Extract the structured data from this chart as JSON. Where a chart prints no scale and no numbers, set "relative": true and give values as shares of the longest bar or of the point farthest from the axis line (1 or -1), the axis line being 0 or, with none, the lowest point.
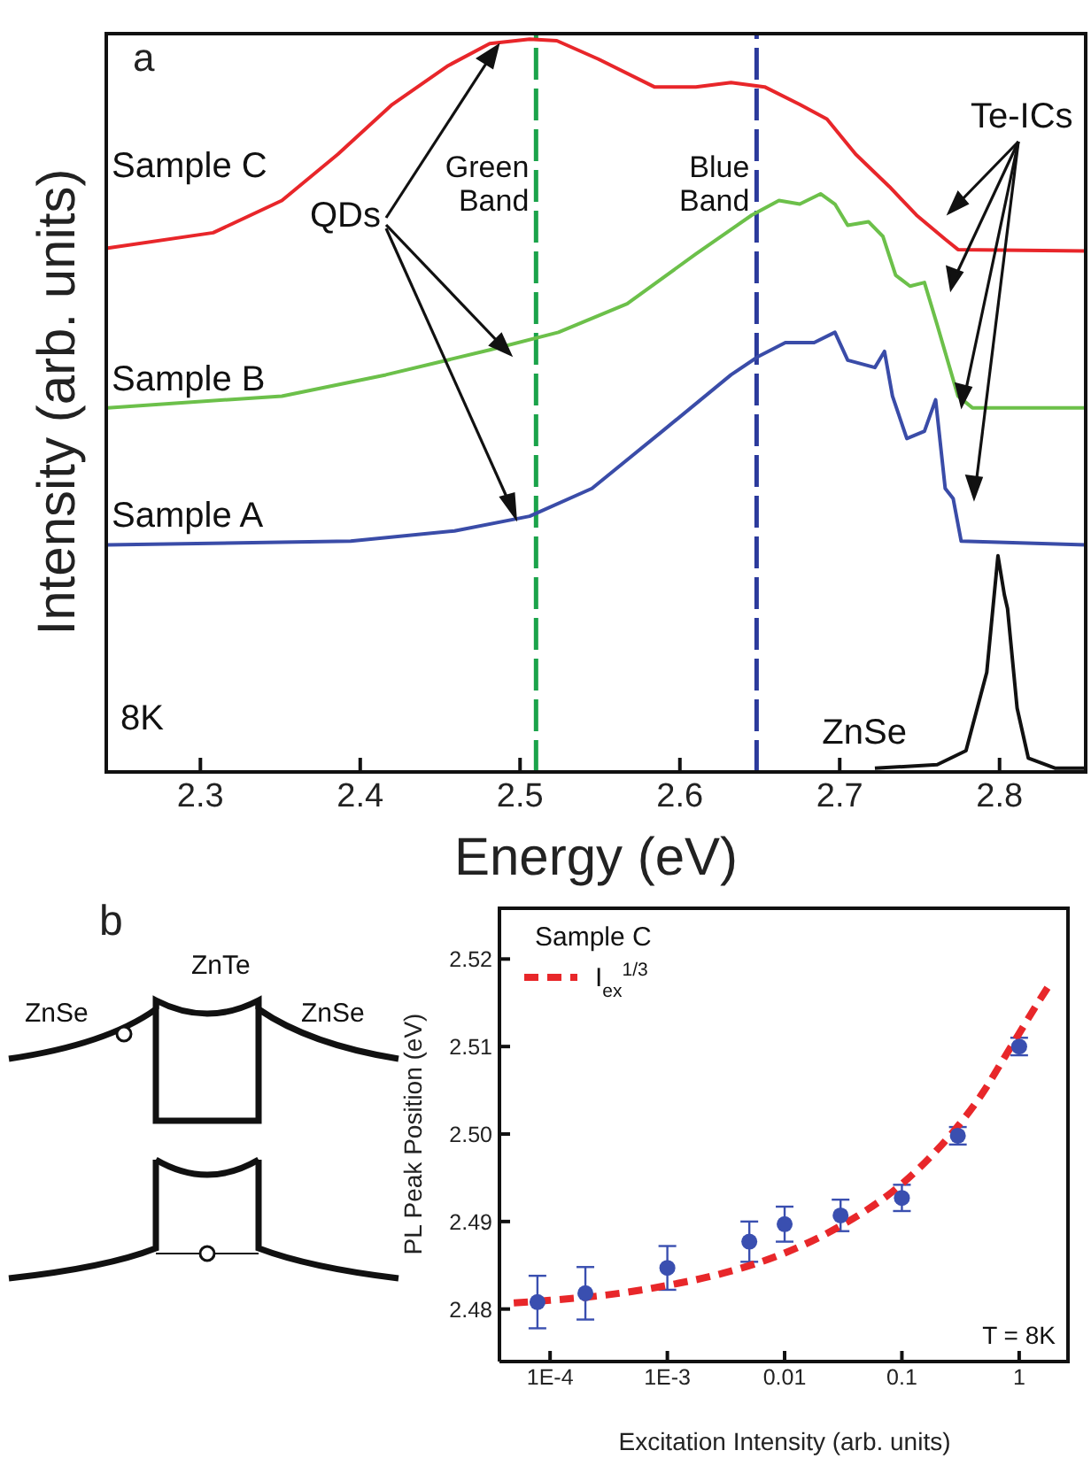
{
  "chart_data": [
    {
      "type": "line",
      "title": "a",
      "xlabel": "Energy (eV)",
      "ylabel": "Intensity (arb. units)",
      "relative": true,
      "xlim": [
        2.24,
        2.855
      ],
      "xticks": [
        2.3,
        2.4,
        2.5,
        2.6,
        2.7,
        2.8
      ],
      "tick_labels": "x",
      "series": [
        {
          "name": "Sample C",
          "color": "#e8262a",
          "x": [
            2.242,
            2.308,
            2.351,
            2.386,
            2.42,
            2.455,
            2.481,
            2.506,
            2.523,
            2.549,
            2.584,
            2.61,
            2.632,
            2.653,
            2.675,
            2.692,
            2.71,
            2.731,
            2.748,
            2.766,
            2.774,
            2.854
          ],
          "values": [
            0.715,
            0.736,
            0.78,
            0.843,
            0.911,
            0.964,
            0.994,
            1.0,
            0.998,
            0.973,
            0.935,
            0.935,
            0.941,
            0.935,
            0.911,
            0.891,
            0.843,
            0.799,
            0.76,
            0.727,
            0.713,
            0.711
          ]
        },
        {
          "name": "Sample B",
          "color": "#6cc04a",
          "x": [
            2.242,
            2.351,
            2.416,
            2.481,
            2.524,
            2.567,
            2.61,
            2.645,
            2.662,
            2.675,
            2.688,
            2.697,
            2.705,
            2.718,
            2.727,
            2.735,
            2.744,
            2.753,
            2.761,
            2.774,
            2.783,
            2.854
          ],
          "values": [
            0.497,
            0.513,
            0.542,
            0.576,
            0.6,
            0.639,
            0.707,
            0.76,
            0.78,
            0.775,
            0.789,
            0.775,
            0.746,
            0.751,
            0.731,
            0.678,
            0.663,
            0.668,
            0.61,
            0.513,
            0.497,
            0.497
          ]
        },
        {
          "name": "Sample A",
          "color": "#3a4ca8",
          "x": [
            2.242,
            2.394,
            2.459,
            2.506,
            2.545,
            2.589,
            2.632,
            2.649,
            2.666,
            2.684,
            2.697,
            2.705,
            2.722,
            2.728,
            2.733,
            2.742,
            2.753,
            2.76,
            2.766,
            2.771,
            2.776,
            2.854
          ],
          "values": [
            0.31,
            0.315,
            0.329,
            0.349,
            0.387,
            0.465,
            0.542,
            0.567,
            0.586,
            0.586,
            0.6,
            0.562,
            0.552,
            0.574,
            0.513,
            0.455,
            0.465,
            0.508,
            0.387,
            0.373,
            0.315,
            0.31
          ]
        },
        {
          "name": "ZnSe",
          "color": "#111111",
          "x": [
            2.722,
            2.761,
            2.779,
            2.792,
            2.799,
            2.803,
            2.805,
            2.811,
            2.818,
            2.835,
            2.854
          ],
          "values": [
            0.005,
            0.01,
            0.029,
            0.136,
            0.295,
            0.242,
            0.223,
            0.087,
            0.019,
            0.005,
            0.005
          ]
        }
      ],
      "ref_lines": [
        {
          "axis": "x",
          "value": 2.51,
          "label": "Green Band",
          "color": "#1aa34a",
          "line_style": "dashed"
        },
        {
          "axis": "x",
          "value": 2.648,
          "label": "Blue Band",
          "color": "#2b3a9c",
          "line_style": "dashed"
        }
      ],
      "annotations": [
        "QDs",
        "Te-ICs",
        "8K"
      ]
    },
    {
      "type": "other",
      "title": "b",
      "annotations": [
        "ZnSe",
        "ZnTe",
        "ZnSe"
      ]
    },
    {
      "type": "scatter",
      "xlabel": "Excitation Intensity  (arb. units)",
      "ylabel": "PL Peak Position (eV)",
      "log": "x",
      "xlim": [
        3.7e-05,
        2.7
      ],
      "xticks": [
        {
          "value": 0.0001,
          "label": "1E-4"
        },
        {
          "value": 0.001,
          "label": "1E-3"
        },
        0.01,
        0.1,
        1
      ],
      "ylim": [
        2.474,
        2.526
      ],
      "yticks": [
        2.48,
        2.49,
        {
          "value": 2.5,
          "label": "2.50"
        },
        2.51,
        2.52
      ],
      "legend": "top left",
      "legend_title": "Sample C",
      "marker": "circle",
      "series": [
        {
          "type": "scatter",
          "color": "#3a4fb0",
          "x": [
            7.8e-05,
            0.0002,
            0.001,
            0.005,
            0.01,
            0.03,
            0.1,
            0.3,
            1
          ],
          "values": [
            2.4808,
            2.4818,
            2.4847,
            2.4877,
            2.4897,
            2.4907,
            2.4927,
            2.4998,
            2.51
          ],
          "errors": [
            0.003,
            0.003,
            0.0025,
            0.0023,
            0.002,
            0.0018,
            0.0015,
            0.001,
            0.001
          ]
        },
        {
          "type": "line",
          "name": "I$_{ex}$$^{1/3}$",
          "color": "#e8272a",
          "line_style": "dashed",
          "marker": "none",
          "x": [
            4.9e-05,
            0.0001,
            0.0003,
            0.001,
            0.003,
            0.01,
            0.03,
            0.1,
            0.2,
            0.3,
            0.5,
            0.7,
            1,
            1.4,
            1.8
          ],
          "values": [
            2.4807,
            2.481,
            2.4816,
            2.4827,
            2.4841,
            2.4864,
            2.4895,
            2.4943,
            2.4982,
            2.5009,
            2.5049,
            2.5081,
            2.5115,
            2.5147,
            2.517
          ]
        }
      ],
      "annotations": [
        "T = 8K"
      ]
    }
  ]
}
